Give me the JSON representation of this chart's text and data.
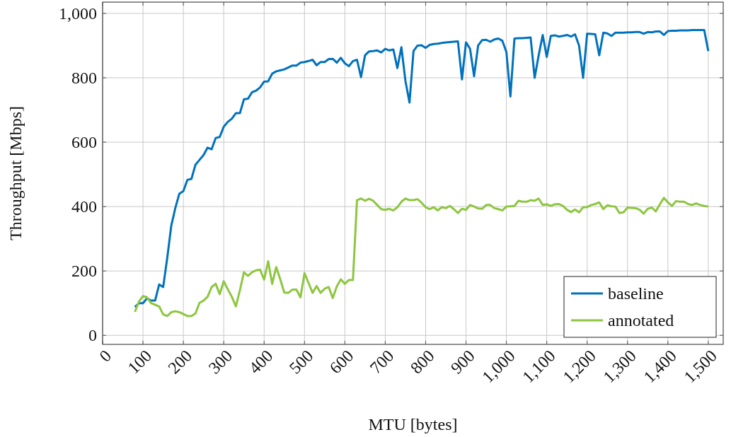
{
  "chart_data": {
    "type": "line",
    "xlabel": "MTU [bytes]",
    "ylabel": "Throughput [Mbps]",
    "x": [
      80,
      90,
      100,
      110,
      120,
      130,
      140,
      150,
      160,
      170,
      180,
      190,
      200,
      210,
      220,
      230,
      240,
      250,
      260,
      270,
      280,
      290,
      300,
      310,
      320,
      330,
      340,
      350,
      360,
      370,
      380,
      390,
      400,
      410,
      420,
      430,
      440,
      450,
      460,
      470,
      480,
      490,
      500,
      510,
      520,
      530,
      540,
      550,
      560,
      570,
      580,
      590,
      600,
      610,
      620,
      630,
      640,
      650,
      660,
      670,
      680,
      690,
      700,
      710,
      720,
      730,
      740,
      750,
      760,
      770,
      780,
      790,
      800,
      810,
      820,
      830,
      840,
      850,
      860,
      870,
      880,
      890,
      900,
      910,
      920,
      930,
      940,
      950,
      960,
      970,
      980,
      990,
      1000,
      1010,
      1020,
      1030,
      1040,
      1050,
      1060,
      1070,
      1080,
      1090,
      1100,
      1110,
      1120,
      1130,
      1140,
      1150,
      1160,
      1170,
      1180,
      1190,
      1200,
      1210,
      1220,
      1230,
      1240,
      1250,
      1260,
      1270,
      1280,
      1290,
      1300,
      1310,
      1320,
      1330,
      1340,
      1350,
      1360,
      1370,
      1380,
      1390,
      1400,
      1410,
      1420,
      1430,
      1440,
      1450,
      1460,
      1470,
      1480,
      1490,
      1500
    ],
    "series": [
      {
        "name": "baseline",
        "color": "#0072bd",
        "values": [
          88,
          100,
          100,
          115,
          108,
          108,
          158,
          150,
          240,
          340,
          395,
          440,
          448,
          483,
          486,
          530,
          545,
          560,
          583,
          578,
          613,
          616,
          648,
          663,
          673,
          690,
          690,
          733,
          735,
          755,
          760,
          770,
          788,
          789,
          813,
          820,
          823,
          826,
          832,
          838,
          838,
          847,
          849,
          852,
          856,
          839,
          849,
          849,
          858,
          859,
          847,
          862,
          845,
          836,
          852,
          856,
          802,
          870,
          882,
          883,
          885,
          879,
          890,
          885,
          888,
          830,
          895,
          790,
          723,
          883,
          900,
          901,
          893,
          902,
          905,
          906,
          908,
          910,
          911,
          912,
          913,
          795,
          910,
          890,
          805,
          900,
          917,
          918,
          912,
          919,
          922,
          915,
          880,
          742,
          922,
          923,
          923,
          924,
          925,
          800,
          870,
          933,
          865,
          930,
          932,
          928,
          930,
          933,
          928,
          935,
          900,
          800,
          937,
          936,
          935,
          870,
          940,
          938,
          930,
          940,
          940,
          940,
          941,
          941,
          942,
          942,
          937,
          942,
          941,
          944,
          944,
          933,
          945,
          946,
          946,
          947,
          947,
          947,
          948,
          948,
          948,
          948,
          883
        ]
      },
      {
        "name": "annotated",
        "color": "#8dc63f",
        "values": [
          73,
          105,
          122,
          118,
          100,
          95,
          90,
          65,
          60,
          72,
          75,
          72,
          66,
          60,
          60,
          68,
          101,
          108,
          120,
          150,
          160,
          128,
          168,
          143,
          120,
          90,
          140,
          196,
          185,
          196,
          202,
          204,
          173,
          230,
          160,
          212,
          174,
          133,
          132,
          142,
          142,
          118,
          193,
          163,
          132,
          153,
          132,
          145,
          150,
          116,
          152,
          174,
          160,
          172,
          172,
          420,
          425,
          418,
          424,
          418,
          405,
          392,
          390,
          393,
          388,
          398,
          415,
          425,
          420,
          420,
          423,
          412,
          398,
          392,
          398,
          388,
          398,
          395,
          402,
          392,
          380,
          393,
          390,
          405,
          400,
          394,
          393,
          405,
          405,
          395,
          392,
          388,
          400,
          401,
          402,
          418,
          415,
          415,
          420,
          418,
          425,
          405,
          407,
          402,
          407,
          408,
          402,
          390,
          383,
          391,
          382,
          398,
          398,
          405,
          408,
          413,
          392,
          404,
          401,
          400,
          380,
          382,
          397,
          396,
          395,
          390,
          378,
          393,
          397,
          385,
          407,
          427,
          413,
          402,
          417,
          415,
          415,
          408,
          405,
          410,
          405,
          402,
          400
        ]
      }
    ],
    "xlim": [
      0,
      1537
    ],
    "ylim": [
      -28,
      1035
    ],
    "xticks": [
      0,
      100,
      200,
      300,
      400,
      500,
      600,
      700,
      800,
      900,
      {
        "value": 1000,
        "label": "1,000"
      },
      {
        "value": 1100,
        "label": "1,100"
      },
      {
        "value": 1200,
        "label": "1,200"
      },
      {
        "value": 1300,
        "label": "1,300"
      },
      {
        "value": 1400,
        "label": "1,400"
      },
      {
        "value": 1500,
        "label": "1,500"
      }
    ],
    "yticks": [
      0,
      200,
      400,
      600,
      800,
      {
        "value": 1000,
        "label": "1,000"
      }
    ],
    "grid": true,
    "legend": "bottom right",
    "line_style": "solid",
    "marker": "none"
  }
}
